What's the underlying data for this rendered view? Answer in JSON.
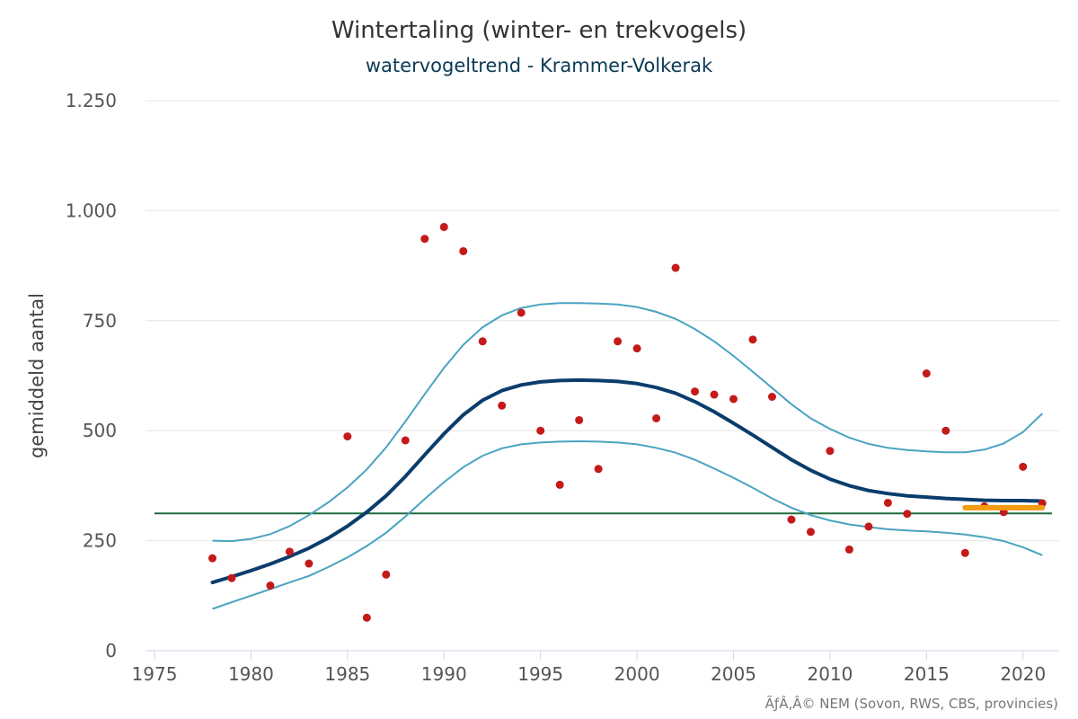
{
  "chart_data": {
    "type": "line",
    "title": "Wintertaling (winter- en trekvogels)",
    "subtitle": "watervogeltrend - Krammer-Volkerak",
    "xlabel": "",
    "ylabel": "gemiddeld aantal",
    "credit": "ÃƒÂ‚Â© NEM (Sovon, RWS, CBS, provincies)",
    "xlim": [
      1975,
      2021.5
    ],
    "ylim": [
      0,
      1250
    ],
    "x_ticks": [
      1975,
      1980,
      1985,
      1990,
      1995,
      2000,
      2005,
      2010,
      2015,
      2020
    ],
    "y_ticks": [
      {
        "value": 0,
        "label": "0"
      },
      {
        "value": 250,
        "label": "250"
      },
      {
        "value": 500,
        "label": "500"
      },
      {
        "value": 750,
        "label": "750"
      },
      {
        "value": 1000,
        "label": "1.000"
      },
      {
        "value": 1250,
        "label": "1.250"
      }
    ],
    "grid": true,
    "colors": {
      "trend": "#0a3d6b",
      "band": "#4aa3c2",
      "points": "#c41a1a",
      "reference": "#1e6b3c",
      "recent": "#f39c12",
      "grid": "#e6e6e6",
      "axis": "#ccd6eb"
    },
    "trend": {
      "x": [
        1978,
        1979,
        1980,
        1981,
        1982,
        1983,
        1984,
        1985,
        1986,
        1987,
        1988,
        1989,
        1990,
        1991,
        1992,
        1993,
        1994,
        1995,
        1996,
        1997,
        1998,
        1999,
        2000,
        2001,
        2002,
        2003,
        2004,
        2005,
        2006,
        2007,
        2008,
        2009,
        2010,
        2011,
        2012,
        2013,
        2014,
        2015,
        2016,
        2017,
        2018,
        2019,
        2020,
        2021
      ],
      "y": [
        155,
        168,
        182,
        197,
        214,
        233,
        256,
        283,
        315,
        352,
        396,
        445,
        493,
        536,
        569,
        591,
        604,
        611,
        614,
        615,
        614,
        612,
        607,
        598,
        585,
        566,
        543,
        517,
        490,
        462,
        434,
        410,
        390,
        375,
        364,
        357,
        352,
        349,
        346,
        344,
        342,
        341,
        341,
        340
      ]
    },
    "upper": {
      "x": [
        1978,
        1979,
        1980,
        1981,
        1982,
        1983,
        1984,
        1985,
        1986,
        1987,
        1988,
        1989,
        1990,
        1991,
        1992,
        1993,
        1994,
        1995,
        1996,
        1997,
        1998,
        1999,
        2000,
        2001,
        2002,
        2003,
        2004,
        2005,
        2006,
        2007,
        2008,
        2009,
        2010,
        2011,
        2012,
        2013,
        2014,
        2015,
        2016,
        2017,
        2018,
        2019,
        2020,
        2021
      ],
      "y": [
        250,
        249,
        254,
        265,
        283,
        308,
        337,
        371,
        412,
        462,
        521,
        583,
        643,
        695,
        735,
        762,
        779,
        787,
        790,
        790,
        789,
        787,
        781,
        770,
        754,
        731,
        703,
        670,
        634,
        597,
        560,
        528,
        504,
        484,
        470,
        461,
        456,
        453,
        451,
        451,
        457,
        471,
        497,
        539
      ]
    },
    "lower": {
      "x": [
        1978,
        1979,
        1980,
        1981,
        1982,
        1983,
        1984,
        1985,
        1986,
        1987,
        1988,
        1989,
        1990,
        1991,
        1992,
        1993,
        1994,
        1995,
        1996,
        1997,
        1998,
        1999,
        2000,
        2001,
        2002,
        2003,
        2004,
        2005,
        2006,
        2007,
        2008,
        2009,
        2010,
        2011,
        2012,
        2013,
        2014,
        2015,
        2016,
        2017,
        2018,
        2019,
        2020,
        2021
      ],
      "y": [
        95,
        110,
        125,
        140,
        155,
        170,
        190,
        212,
        238,
        268,
        305,
        345,
        383,
        417,
        443,
        460,
        469,
        473,
        475,
        476,
        475,
        473,
        469,
        461,
        450,
        434,
        414,
        393,
        370,
        346,
        325,
        308,
        296,
        287,
        281,
        276,
        273,
        271,
        268,
        264,
        258,
        249,
        235,
        217
      ]
    },
    "points": {
      "x": [
        1978,
        1979,
        1981,
        1982,
        1983,
        1985,
        1986,
        1987,
        1988,
        1989,
        1990,
        1991,
        1992,
        1993,
        1994,
        1995,
        1996,
        1997,
        1998,
        1999,
        2000,
        2001,
        2002,
        2003,
        2004,
        2005,
        2006,
        2007,
        2008,
        2009,
        2010,
        2011,
        2012,
        2013,
        2014,
        2015,
        2016,
        2017,
        2018,
        2019,
        2020,
        2021
      ],
      "y": [
        210,
        165,
        148,
        225,
        198,
        487,
        75,
        173,
        478,
        936,
        963,
        908,
        703,
        557,
        768,
        500,
        377,
        524,
        413,
        703,
        687,
        528,
        870,
        589,
        582,
        572,
        707,
        577,
        298,
        270,
        454,
        230,
        282,
        336,
        311,
        630,
        500,
        222,
        328,
        315,
        418,
        335
      ]
    },
    "reference": {
      "y": 312
    },
    "recent": {
      "x": [
        2017,
        2021
      ],
      "y": 325
    }
  }
}
